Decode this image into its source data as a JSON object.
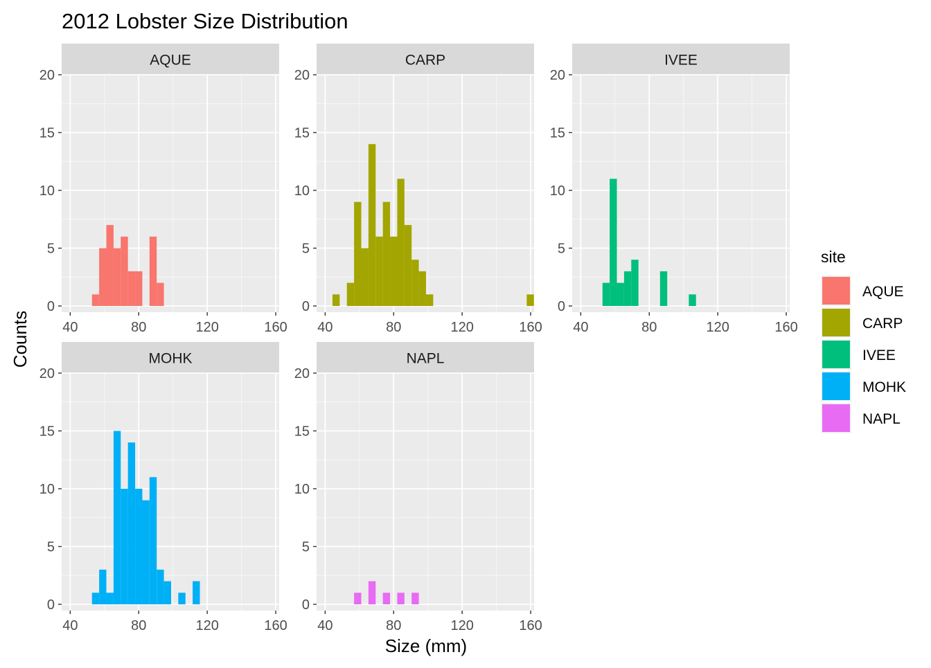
{
  "chart_data": {
    "type": "bar",
    "title": "2012 Lobster Size Distribution",
    "xlabel": "Size (mm)",
    "ylabel": "Counts",
    "xlim": [
      35,
      162
    ],
    "ylim": [
      0,
      20
    ],
    "x_ticks": [
      40,
      80,
      120,
      160
    ],
    "y_ticks": [
      0,
      5,
      10,
      15,
      20
    ],
    "bin_width": 4.2,
    "grid": true,
    "legend": {
      "title": "site",
      "position": "right",
      "items": [
        "AQUE",
        "CARP",
        "IVEE",
        "MOHK",
        "NAPL"
      ]
    },
    "colors": {
      "AQUE": "#F8766D",
      "CARP": "#A3A500",
      "IVEE": "#00BF7D",
      "MOHK": "#00B0F6",
      "NAPL": "#E76BF3",
      "panel_bg": "#EBEBEB",
      "strip_bg": "#D9D9D9",
      "grid": "#FFFFFF"
    },
    "panels": [
      {
        "site": "AQUE",
        "bins": [
          [
            54.8,
            1
          ],
          [
            59.0,
            5
          ],
          [
            63.2,
            7
          ],
          [
            67.4,
            5
          ],
          [
            71.6,
            6
          ],
          [
            75.8,
            3
          ],
          [
            80.0,
            3
          ],
          [
            88.4,
            6
          ],
          [
            92.6,
            2
          ]
        ]
      },
      {
        "site": "CARP",
        "bins": [
          [
            46.4,
            1
          ],
          [
            54.8,
            2
          ],
          [
            59.0,
            9
          ],
          [
            63.2,
            5
          ],
          [
            67.4,
            14
          ],
          [
            71.6,
            6
          ],
          [
            75.8,
            9
          ],
          [
            80.0,
            6
          ],
          [
            84.2,
            11
          ],
          [
            88.4,
            7
          ],
          [
            92.6,
            4
          ],
          [
            96.8,
            3
          ],
          [
            101.0,
            1
          ],
          [
            159.8,
            1
          ]
        ]
      },
      {
        "site": "IVEE",
        "bins": [
          [
            54.8,
            2
          ],
          [
            59.0,
            11
          ],
          [
            63.2,
            2
          ],
          [
            67.4,
            3
          ],
          [
            71.6,
            4
          ],
          [
            88.4,
            3
          ],
          [
            105.2,
            1
          ]
        ]
      },
      {
        "site": "MOHK",
        "bins": [
          [
            54.8,
            1
          ],
          [
            59.0,
            3
          ],
          [
            63.2,
            1
          ],
          [
            67.4,
            15
          ],
          [
            71.6,
            10
          ],
          [
            75.8,
            14
          ],
          [
            80.0,
            10
          ],
          [
            84.2,
            9
          ],
          [
            88.4,
            11
          ],
          [
            92.6,
            3
          ],
          [
            96.8,
            2
          ],
          [
            105.2,
            1
          ],
          [
            113.6,
            2
          ]
        ]
      },
      {
        "site": "NAPL",
        "bins": [
          [
            59.0,
            1
          ],
          [
            67.4,
            2
          ],
          [
            75.8,
            1
          ],
          [
            84.2,
            1
          ],
          [
            92.6,
            1
          ]
        ]
      }
    ]
  }
}
